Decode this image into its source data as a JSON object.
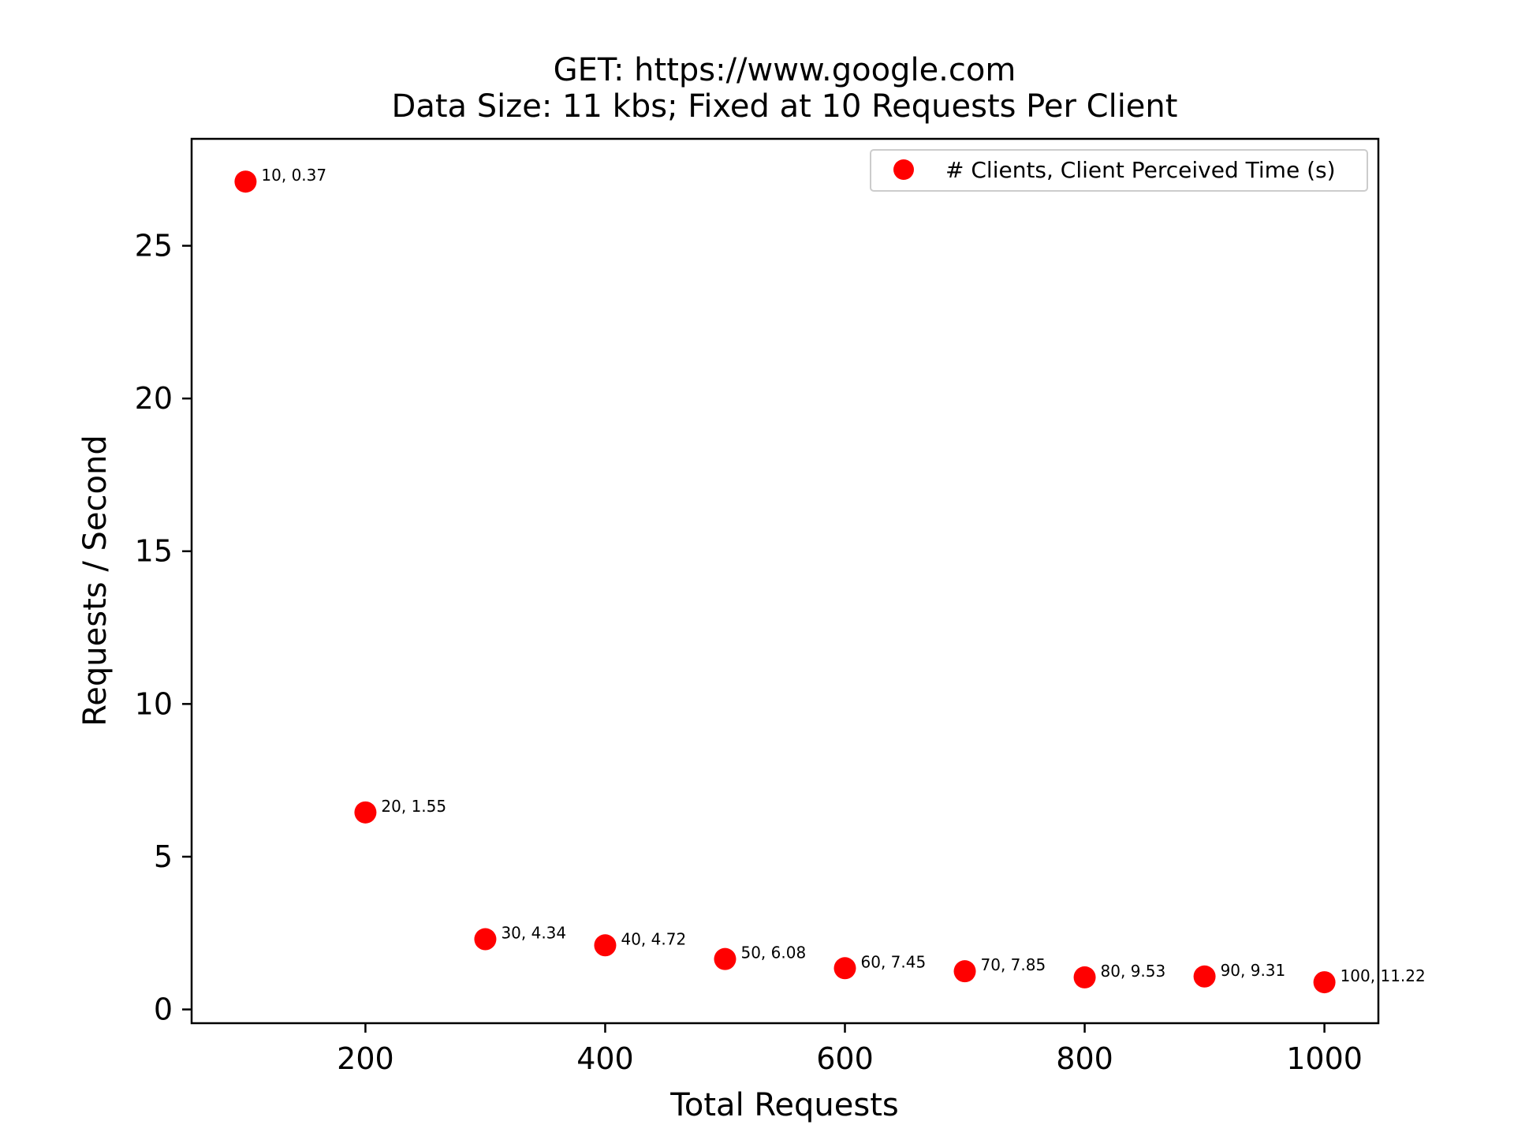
{
  "chart_data": {
    "type": "scatter",
    "title_lines": [
      "GET: https://www.google.com",
      "Data Size: 11 kbs; Fixed at 10 Requests Per Client"
    ],
    "xlabel": "Total Requests",
    "ylabel": "Requests / Second",
    "xlim": [
      55,
      1045
    ],
    "ylim": [
      -0.45,
      28.5
    ],
    "xticks": [
      200,
      400,
      600,
      800,
      1000
    ],
    "yticks": [
      0,
      5,
      10,
      15,
      20,
      25
    ],
    "grid": false,
    "legend_position": "top-right",
    "point_color": "#ff0000",
    "series": [
      {
        "name": "# Clients, Client Perceived Time (s)",
        "points": [
          {
            "x": 100,
            "y": 27.1,
            "label": "10, 0.37"
          },
          {
            "x": 200,
            "y": 6.45,
            "label": "20, 1.55"
          },
          {
            "x": 300,
            "y": 2.3,
            "label": "30, 4.34"
          },
          {
            "x": 400,
            "y": 2.1,
            "label": "40, 4.72"
          },
          {
            "x": 500,
            "y": 1.65,
            "label": "50, 6.08"
          },
          {
            "x": 600,
            "y": 1.35,
            "label": "60, 7.45"
          },
          {
            "x": 700,
            "y": 1.25,
            "label": "70, 7.85"
          },
          {
            "x": 800,
            "y": 1.05,
            "label": "80, 9.53"
          },
          {
            "x": 900,
            "y": 1.08,
            "label": "90, 9.31"
          },
          {
            "x": 1000,
            "y": 0.89,
            "label": "100, 11.22"
          }
        ]
      }
    ]
  }
}
